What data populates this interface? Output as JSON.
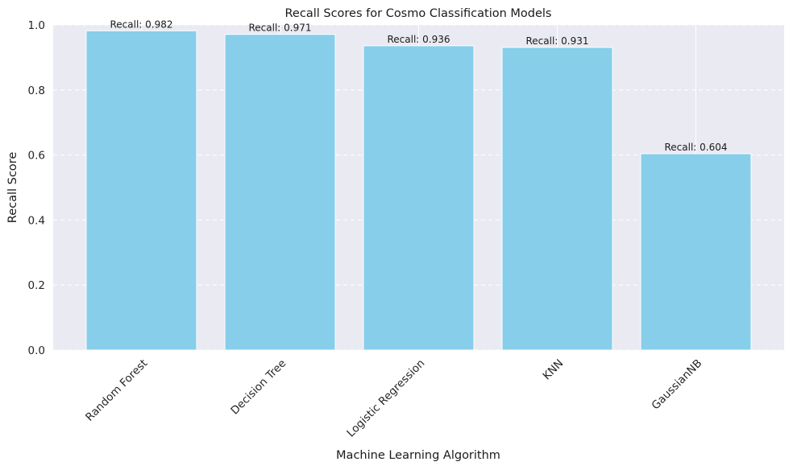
{
  "chart_data": {
    "type": "bar",
    "title": "Recall Scores for Cosmo Classification Models",
    "xlabel": "Machine Learning Algorithm",
    "ylabel": "Recall Score",
    "categories": [
      "Random Forest",
      "Decision Tree",
      "Logistic Regression",
      "KNN",
      "GaussianNB"
    ],
    "values": [
      0.982,
      0.971,
      0.936,
      0.931,
      0.604
    ],
    "data_labels": [
      "Recall: 0.982",
      "Recall: 0.971",
      "Recall: 0.936",
      "Recall: 0.931",
      "Recall: 0.604"
    ],
    "ylim": [
      0,
      1.0
    ],
    "yticks": [
      "0.0",
      "0.2",
      "0.4",
      "0.6",
      "0.8",
      "1.0"
    ],
    "grid": true,
    "colors": {
      "bar": "#87ceeb",
      "background": "#eaeaf2"
    }
  }
}
